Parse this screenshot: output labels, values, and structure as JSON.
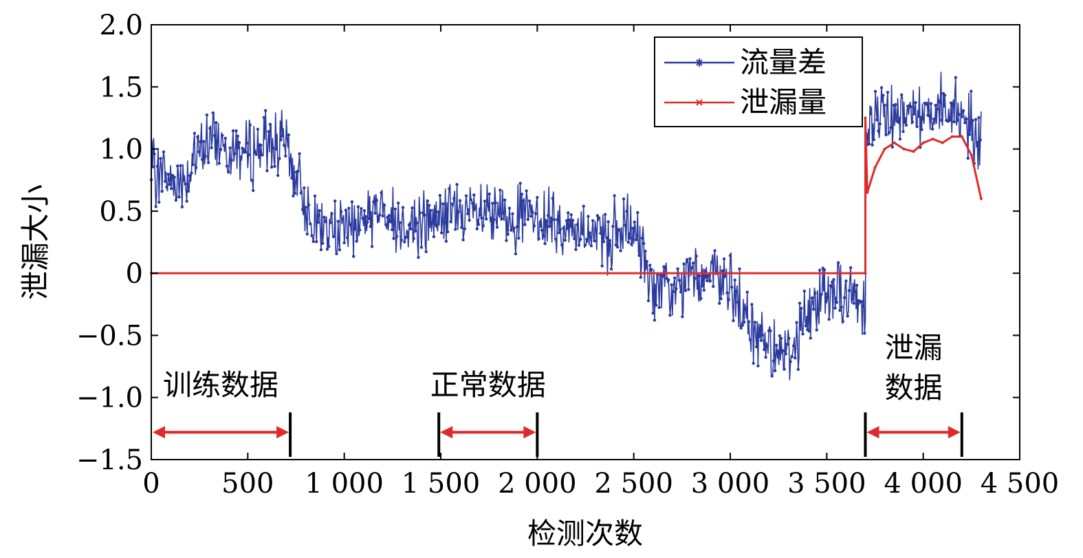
{
  "chart_data": {
    "type": "line",
    "xlabel": "检测次数",
    "ylabel": "泄漏大小",
    "xlim": [
      0,
      4500
    ],
    "ylim": [
      -1.5,
      2.0
    ],
    "xticks": [
      0,
      500,
      1000,
      1500,
      2000,
      2500,
      3000,
      3500,
      4000,
      4500
    ],
    "xtick_labels": [
      "0",
      "500",
      "1 000",
      "1 500",
      "2 000",
      "2 500",
      "3 000",
      "3 500",
      "4 000",
      "4 500"
    ],
    "yticks": [
      -1.5,
      -1.0,
      -0.5,
      0,
      0.5,
      1.0,
      1.5,
      2.0
    ],
    "ytick_labels": [
      "−1.5",
      "−1.0",
      "−0.5",
      "0",
      "0.5",
      "1.0",
      "1.5",
      "2.0"
    ],
    "legend_position": "top-right",
    "grid": false,
    "series": [
      {
        "name": "流量差",
        "color": "#2b3a9e",
        "marker": "star",
        "anchor_x": [
          0,
          100,
          200,
          300,
          400,
          500,
          600,
          700,
          800,
          900,
          1000,
          1100,
          1200,
          1300,
          1400,
          1500,
          1600,
          1700,
          1800,
          1900,
          2000,
          2100,
          2200,
          2300,
          2400,
          2500,
          2600,
          2700,
          2800,
          2900,
          3000,
          3100,
          3200,
          3300,
          3400,
          3500,
          3600,
          3700,
          3701,
          3800,
          3900,
          4000,
          4100,
          4200,
          4300
        ],
        "anchor_y": [
          0.85,
          0.75,
          0.8,
          1.1,
          1.05,
          0.95,
          1.05,
          1.0,
          0.55,
          0.35,
          0.35,
          0.45,
          0.5,
          0.4,
          0.4,
          0.45,
          0.5,
          0.45,
          0.45,
          0.45,
          0.45,
          0.4,
          0.35,
          0.3,
          0.3,
          0.35,
          -0.1,
          -0.2,
          0.0,
          -0.05,
          -0.1,
          -0.45,
          -0.55,
          -0.65,
          -0.35,
          -0.1,
          -0.2,
          -0.25,
          1.2,
          1.3,
          1.3,
          1.3,
          1.35,
          1.3,
          1.0
        ],
        "noise_amplitude": 0.22
      },
      {
        "name": "泄漏量",
        "color": "#e02a2a",
        "marker": "x",
        "x": [
          0,
          3700,
          3700,
          3710,
          3750,
          3800,
          3850,
          3900,
          3950,
          4000,
          4050,
          4100,
          4150,
          4200,
          4250,
          4300
        ],
        "y": [
          0.0,
          0.0,
          1.25,
          0.65,
          0.85,
          1.0,
          1.05,
          1.0,
          0.98,
          1.05,
          1.08,
          1.05,
          1.1,
          1.1,
          0.95,
          0.6
        ]
      }
    ],
    "annotations": [
      {
        "text": "训练数据",
        "range": [
          0,
          720
        ]
      },
      {
        "text": "正常数据",
        "range": [
          1490,
          2000
        ]
      },
      {
        "text": "泄漏数据",
        "text_lines": [
          "泄漏",
          "数据"
        ],
        "range": [
          3700,
          4200
        ]
      }
    ]
  }
}
